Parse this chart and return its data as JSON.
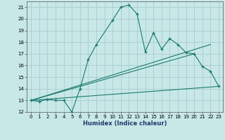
{
  "xlabel": "Humidex (Indice chaleur)",
  "bg_color": "#c8e8e8",
  "grid_color": "#aacccc",
  "line_color": "#1a7a6e",
  "xlim": [
    -0.5,
    23.5
  ],
  "ylim": [
    12,
    21.5
  ],
  "yticks": [
    12,
    13,
    14,
    15,
    16,
    17,
    18,
    19,
    20,
    21
  ],
  "xticks": [
    0,
    1,
    2,
    3,
    4,
    5,
    6,
    7,
    8,
    9,
    10,
    11,
    12,
    13,
    14,
    15,
    16,
    17,
    18,
    19,
    20,
    21,
    22,
    23
  ],
  "series1_x": [
    0,
    1,
    2,
    3,
    4,
    5,
    6,
    7,
    8,
    10,
    11,
    12,
    13,
    14,
    15,
    16,
    17,
    18,
    19,
    20,
    21,
    22,
    23
  ],
  "series1_y": [
    13.0,
    12.9,
    13.1,
    13.0,
    13.0,
    12.0,
    14.0,
    16.5,
    17.8,
    19.9,
    21.0,
    21.2,
    20.4,
    17.2,
    18.8,
    17.4,
    18.3,
    17.8,
    17.1,
    17.0,
    15.9,
    15.5,
    14.2
  ],
  "series2_x": [
    0,
    20
  ],
  "series2_y": [
    13.0,
    17.0
  ],
  "series3_x": [
    0,
    22
  ],
  "series3_y": [
    13.0,
    17.8
  ],
  "series4_x": [
    0,
    23
  ],
  "series4_y": [
    13.0,
    14.2
  ]
}
